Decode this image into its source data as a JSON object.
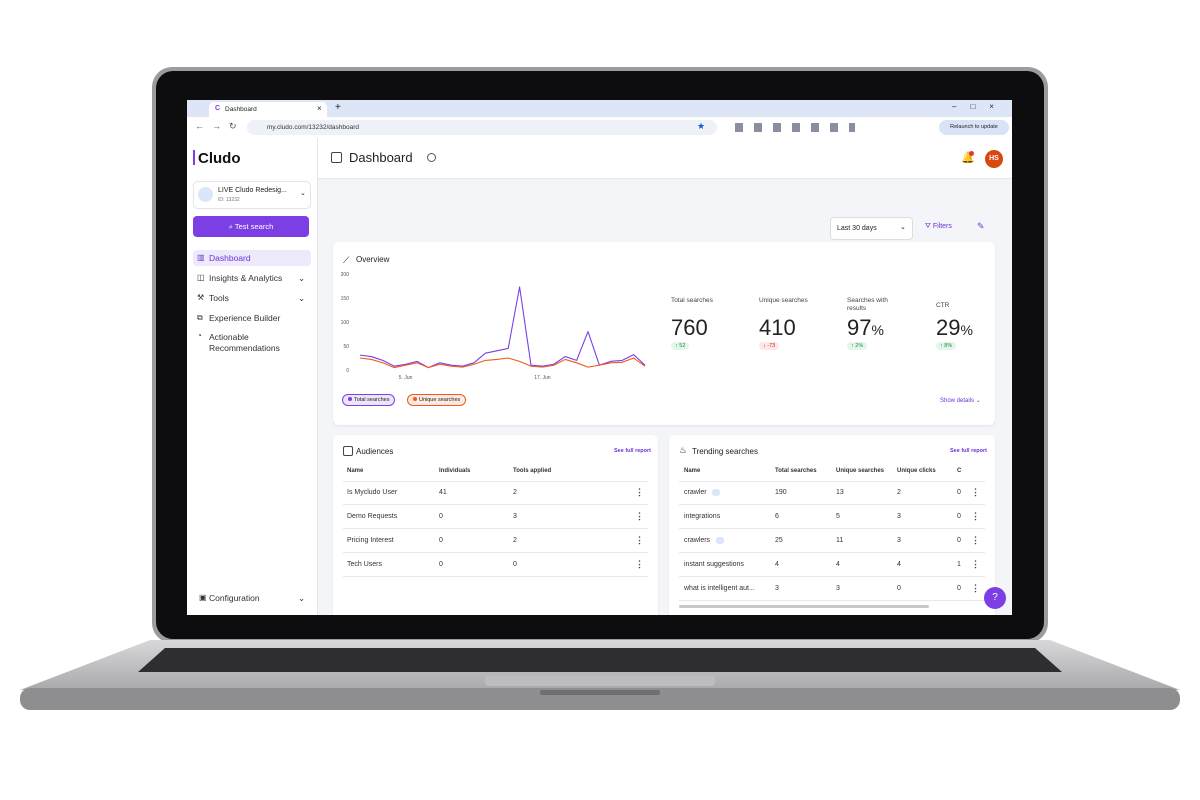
{
  "browser": {
    "tab_title": "Dashboard",
    "url": "my.cludo.com/13232/dashboard",
    "relaunch": "Relaunch to update"
  },
  "sidebar": {
    "logo": "Cludo",
    "site_name": "LIVE Cludo Redesig...",
    "site_id": "ID: 13232",
    "test_search": "Test search",
    "nav": [
      "Dashboard",
      "Insights & Analytics",
      "Tools",
      "Experience Builder",
      "Actionable Recommendations"
    ],
    "configuration": "Configuration"
  },
  "header": {
    "title": "Dashboard",
    "avatar": "HS"
  },
  "toolbar": {
    "date_range": "Last 30 days",
    "filters": "Filters"
  },
  "overview": {
    "title": "Overview",
    "show_details": "Show details",
    "kpis": [
      {
        "label": "Total searches",
        "value": "760",
        "delta": "52",
        "trend": "up"
      },
      {
        "label": "Unique searches",
        "value": "410",
        "delta": "-73",
        "trend": "down"
      },
      {
        "label": "Searches with results",
        "value": "97",
        "unit": "%",
        "delta": "2%",
        "trend": "up"
      },
      {
        "label": "CTR",
        "value": "29",
        "unit": "%",
        "delta": "8%",
        "trend": "up"
      }
    ]
  },
  "chart_data": {
    "type": "line",
    "categories": [
      null,
      null,
      null,
      null,
      "5. Jun",
      null,
      null,
      null,
      null,
      null,
      null,
      null,
      null,
      null,
      null,
      null,
      "17. Jun",
      null,
      null,
      null,
      null,
      null,
      null,
      null,
      null,
      null
    ],
    "series": [
      {
        "name": "Total searches",
        "color": "#7b3fe4",
        "values": [
          31,
          28,
          20,
          8,
          12,
          18,
          5,
          15,
          10,
          8,
          15,
          35,
          40,
          45,
          173,
          10,
          8,
          12,
          28,
          20,
          80,
          10,
          18,
          20,
          32,
          10
        ]
      },
      {
        "name": "Unique searches",
        "color": "#f05a1e",
        "values": [
          25,
          22,
          15,
          5,
          10,
          15,
          5,
          12,
          8,
          6,
          12,
          20,
          22,
          25,
          18,
          8,
          6,
          10,
          22,
          15,
          6,
          10,
          15,
          16,
          25,
          8
        ]
      }
    ],
    "ylim": [
      0,
      200
    ],
    "yticks": [
      0,
      50,
      100,
      150,
      200
    ],
    "grid": false
  },
  "audiences": {
    "title": "Audiences",
    "link": "See full report",
    "columns": [
      "Name",
      "Individuals",
      "Tools applied"
    ],
    "rows": [
      [
        "Is Mycludo User",
        "41",
        "2"
      ],
      [
        "Demo Requests",
        "0",
        "3"
      ],
      [
        "Pricing Interest",
        "0",
        "2"
      ],
      [
        "Tech Users",
        "0",
        "0"
      ]
    ]
  },
  "trending": {
    "title": "Trending searches",
    "link": "See full report",
    "columns": [
      "Name",
      "Total searches",
      "Unique searches",
      "Unique clicks",
      "C"
    ],
    "rows": [
      [
        "crawler",
        "190",
        "13",
        "2",
        "0"
      ],
      [
        "integrations",
        "6",
        "5",
        "3",
        "0"
      ],
      [
        "crawlers",
        "25",
        "11",
        "3",
        "0"
      ],
      [
        "instant suggestions",
        "4",
        "4",
        "4",
        "1"
      ],
      [
        "what is intelligent aut...",
        "3",
        "3",
        "0",
        "0"
      ]
    ]
  }
}
